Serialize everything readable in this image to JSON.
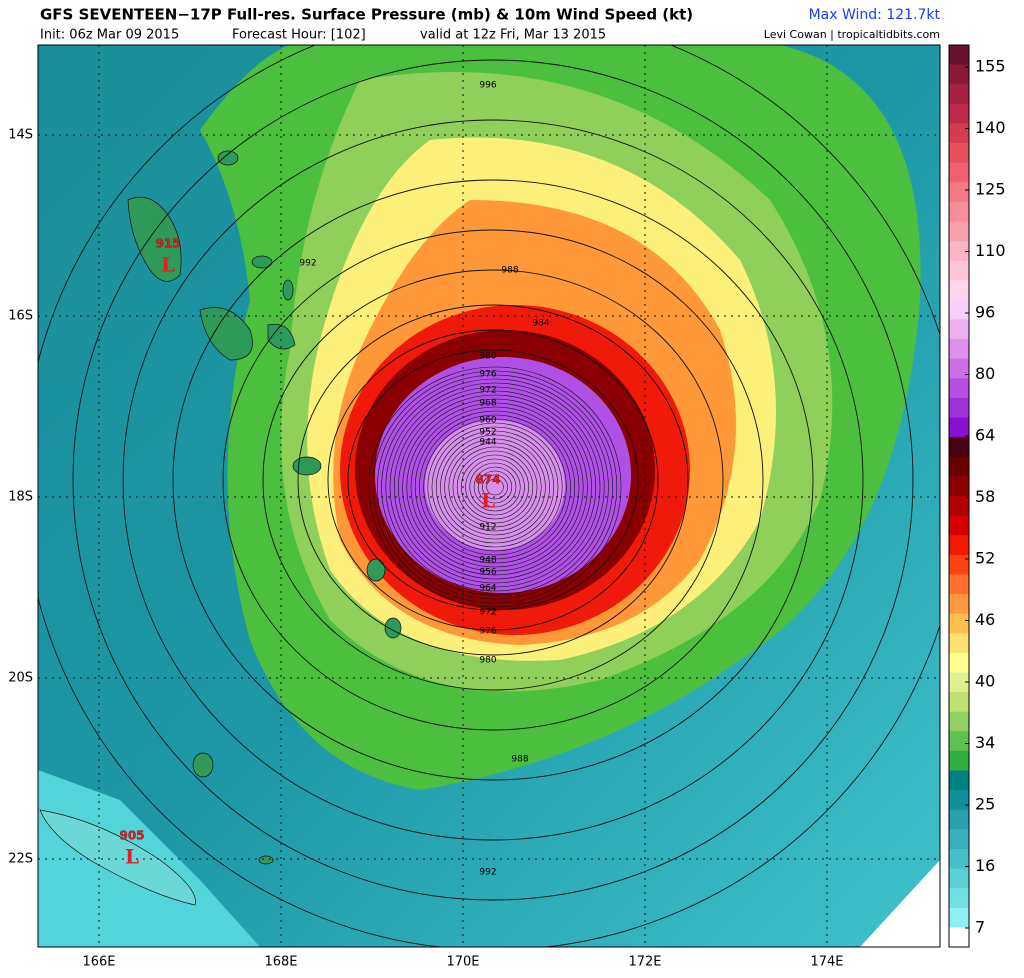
{
  "header": {
    "title": "GFS SEVENTEEN−17P Full-res. Surface Pressure (mb) & 10m Wind Speed (kt)",
    "max_wind": "Max Wind: 121.7kt",
    "init": "Init: 06z Mar 09 2015",
    "forecast_hour": "Forecast Hour: [102]",
    "valid": "valid at 12z Fri, Mar 13 2015",
    "credit": "Levi Cowan | tropicaltidbits.com"
  },
  "map": {
    "lat_labels": [
      "14S",
      "16S",
      "18S",
      "20S",
      "22S"
    ],
    "lon_labels": [
      "166E",
      "168E",
      "170E",
      "172E",
      "174E"
    ],
    "contour_labels": [
      "996",
      "992",
      "988",
      "984",
      "980",
      "976",
      "972",
      "968",
      "960",
      "952",
      "944",
      "912",
      "948",
      "956",
      "964",
      "972",
      "976",
      "980",
      "988",
      "992"
    ],
    "lows": [
      {
        "pressure": "915",
        "symbol": "L"
      },
      {
        "pressure": "905",
        "symbol": "L"
      },
      {
        "pressure": "874",
        "symbol": "L"
      }
    ]
  },
  "colorbar": {
    "labels": [
      "155",
      "140",
      "125",
      "110",
      "96",
      "80",
      "64",
      "58",
      "52",
      "46",
      "40",
      "34",
      "25",
      "16",
      "7"
    ]
  }
}
